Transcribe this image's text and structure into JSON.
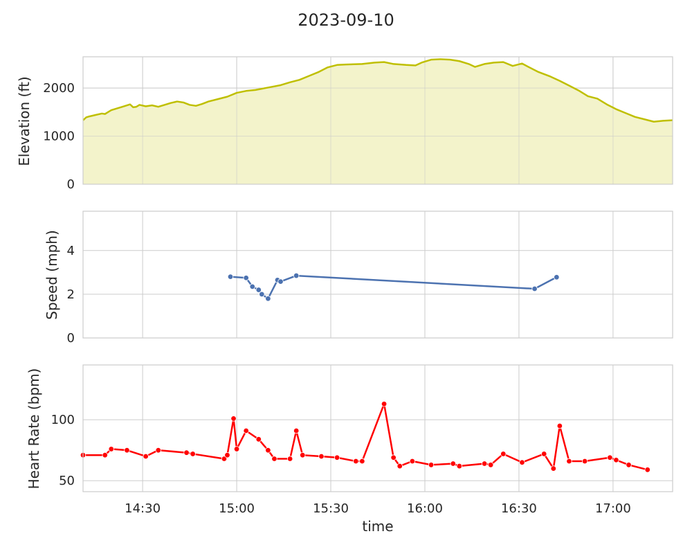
{
  "title": "2023-09-10",
  "colors": {
    "elevation": "#bfbf00",
    "elevation_fill": "#f2f2c8",
    "speed": "#4c72b0",
    "heart_rate": "#ff0000",
    "grid": "#cccccc",
    "frame": "#cccccc"
  },
  "chart_data": [
    {
      "type": "area",
      "ylabel": "Elevation (ft)",
      "xlabel": "",
      "ylim": [
        0,
        2650
      ],
      "yticks": [
        0,
        1000,
        2000
      ],
      "xlim": [
        "14:11",
        "17:19"
      ],
      "grid": true,
      "points": [
        [
          "14:11",
          1330
        ],
        [
          "14:12",
          1390
        ],
        [
          "14:13",
          1410
        ],
        [
          "14:15",
          1440
        ],
        [
          "14:17",
          1470
        ],
        [
          "14:18",
          1460
        ],
        [
          "14:19",
          1500
        ],
        [
          "14:20",
          1540
        ],
        [
          "14:22",
          1580
        ],
        [
          "14:24",
          1620
        ],
        [
          "14:26",
          1660
        ],
        [
          "14:27",
          1600
        ],
        [
          "14:28",
          1610
        ],
        [
          "14:29",
          1650
        ],
        [
          "14:31",
          1620
        ],
        [
          "14:33",
          1640
        ],
        [
          "14:35",
          1610
        ],
        [
          "14:37",
          1650
        ],
        [
          "14:39",
          1690
        ],
        [
          "14:41",
          1720
        ],
        [
          "14:43",
          1700
        ],
        [
          "14:45",
          1650
        ],
        [
          "14:47",
          1630
        ],
        [
          "14:49",
          1670
        ],
        [
          "14:51",
          1720
        ],
        [
          "14:54",
          1770
        ],
        [
          "14:57",
          1820
        ],
        [
          "15:00",
          1900
        ],
        [
          "15:03",
          1940
        ],
        [
          "15:06",
          1960
        ],
        [
          "15:10",
          2010
        ],
        [
          "15:14",
          2060
        ],
        [
          "15:17",
          2120
        ],
        [
          "15:20",
          2170
        ],
        [
          "15:23",
          2250
        ],
        [
          "15:26",
          2330
        ],
        [
          "15:29",
          2430
        ],
        [
          "15:32",
          2480
        ],
        [
          "15:35",
          2490
        ],
        [
          "15:40",
          2500
        ],
        [
          "15:44",
          2530
        ],
        [
          "15:47",
          2540
        ],
        [
          "15:50",
          2500
        ],
        [
          "15:54",
          2480
        ],
        [
          "15:57",
          2470
        ],
        [
          "15:59",
          2530
        ],
        [
          "16:02",
          2590
        ],
        [
          "16:05",
          2600
        ],
        [
          "16:08",
          2590
        ],
        [
          "16:11",
          2560
        ],
        [
          "16:14",
          2500
        ],
        [
          "16:16",
          2440
        ],
        [
          "16:19",
          2500
        ],
        [
          "16:22",
          2530
        ],
        [
          "16:25",
          2540
        ],
        [
          "16:28",
          2460
        ],
        [
          "16:31",
          2510
        ],
        [
          "16:33",
          2440
        ],
        [
          "16:36",
          2340
        ],
        [
          "16:40",
          2240
        ],
        [
          "16:43",
          2150
        ],
        [
          "16:46",
          2050
        ],
        [
          "16:49",
          1950
        ],
        [
          "16:52",
          1830
        ],
        [
          "16:55",
          1780
        ],
        [
          "16:58",
          1660
        ],
        [
          "17:01",
          1560
        ],
        [
          "17:04",
          1480
        ],
        [
          "17:07",
          1400
        ],
        [
          "17:10",
          1350
        ],
        [
          "17:13",
          1300
        ],
        [
          "17:16",
          1320
        ],
        [
          "17:19",
          1330
        ]
      ]
    },
    {
      "type": "line",
      "ylabel": "Speed (mph)",
      "xlabel": "",
      "ylim": [
        0,
        5.8
      ],
      "yticks": [
        0,
        2,
        4
      ],
      "xlim": [
        "14:11",
        "17:19"
      ],
      "grid": true,
      "markers": true,
      "points": [
        [
          "14:58",
          2.8
        ],
        [
          "15:03",
          2.75
        ],
        [
          "15:05",
          2.35
        ],
        [
          "15:07",
          2.2
        ],
        [
          "15:08",
          2.0
        ],
        [
          "15:10",
          1.8
        ],
        [
          "15:13",
          2.65
        ],
        [
          "15:14",
          2.58
        ],
        [
          "15:19",
          2.85
        ],
        [
          "16:35",
          2.25
        ],
        [
          "16:42",
          2.78
        ]
      ]
    },
    {
      "type": "line",
      "ylabel": "Heart Rate (bpm)",
      "xlabel": "time",
      "ylim": [
        41,
        145
      ],
      "yticks": [
        50,
        100
      ],
      "xlim": [
        "14:11",
        "17:19"
      ],
      "xticks": [
        "14:30",
        "15:00",
        "15:30",
        "16:00",
        "16:30",
        "17:00"
      ],
      "grid": true,
      "markers": true,
      "points": [
        [
          "14:11",
          71
        ],
        [
          "14:18",
          71
        ],
        [
          "14:20",
          76
        ],
        [
          "14:25",
          75
        ],
        [
          "14:31",
          70
        ],
        [
          "14:35",
          75
        ],
        [
          "14:44",
          73
        ],
        [
          "14:46",
          72
        ],
        [
          "14:56",
          68
        ],
        [
          "14:57",
          71
        ],
        [
          "14:59",
          101
        ],
        [
          "15:00",
          76
        ],
        [
          "15:03",
          91
        ],
        [
          "15:07",
          84
        ],
        [
          "15:10",
          75
        ],
        [
          "15:12",
          68
        ],
        [
          "15:17",
          68
        ],
        [
          "15:19",
          91
        ],
        [
          "15:21",
          71
        ],
        [
          "15:27",
          70
        ],
        [
          "15:32",
          69
        ],
        [
          "15:38",
          66
        ],
        [
          "15:40",
          66
        ],
        [
          "15:47",
          113
        ],
        [
          "15:50",
          69
        ],
        [
          "15:52",
          62
        ],
        [
          "15:56",
          66
        ],
        [
          "16:02",
          63
        ],
        [
          "16:09",
          64
        ],
        [
          "16:11",
          62
        ],
        [
          "16:19",
          64
        ],
        [
          "16:21",
          63
        ],
        [
          "16:25",
          72
        ],
        [
          "16:31",
          65
        ],
        [
          "16:38",
          72
        ],
        [
          "16:41",
          60
        ],
        [
          "16:43",
          95
        ],
        [
          "16:46",
          66
        ],
        [
          "16:51",
          66
        ],
        [
          "16:59",
          69
        ],
        [
          "17:01",
          67
        ],
        [
          "17:05",
          63
        ],
        [
          "17:11",
          59
        ]
      ]
    }
  ]
}
